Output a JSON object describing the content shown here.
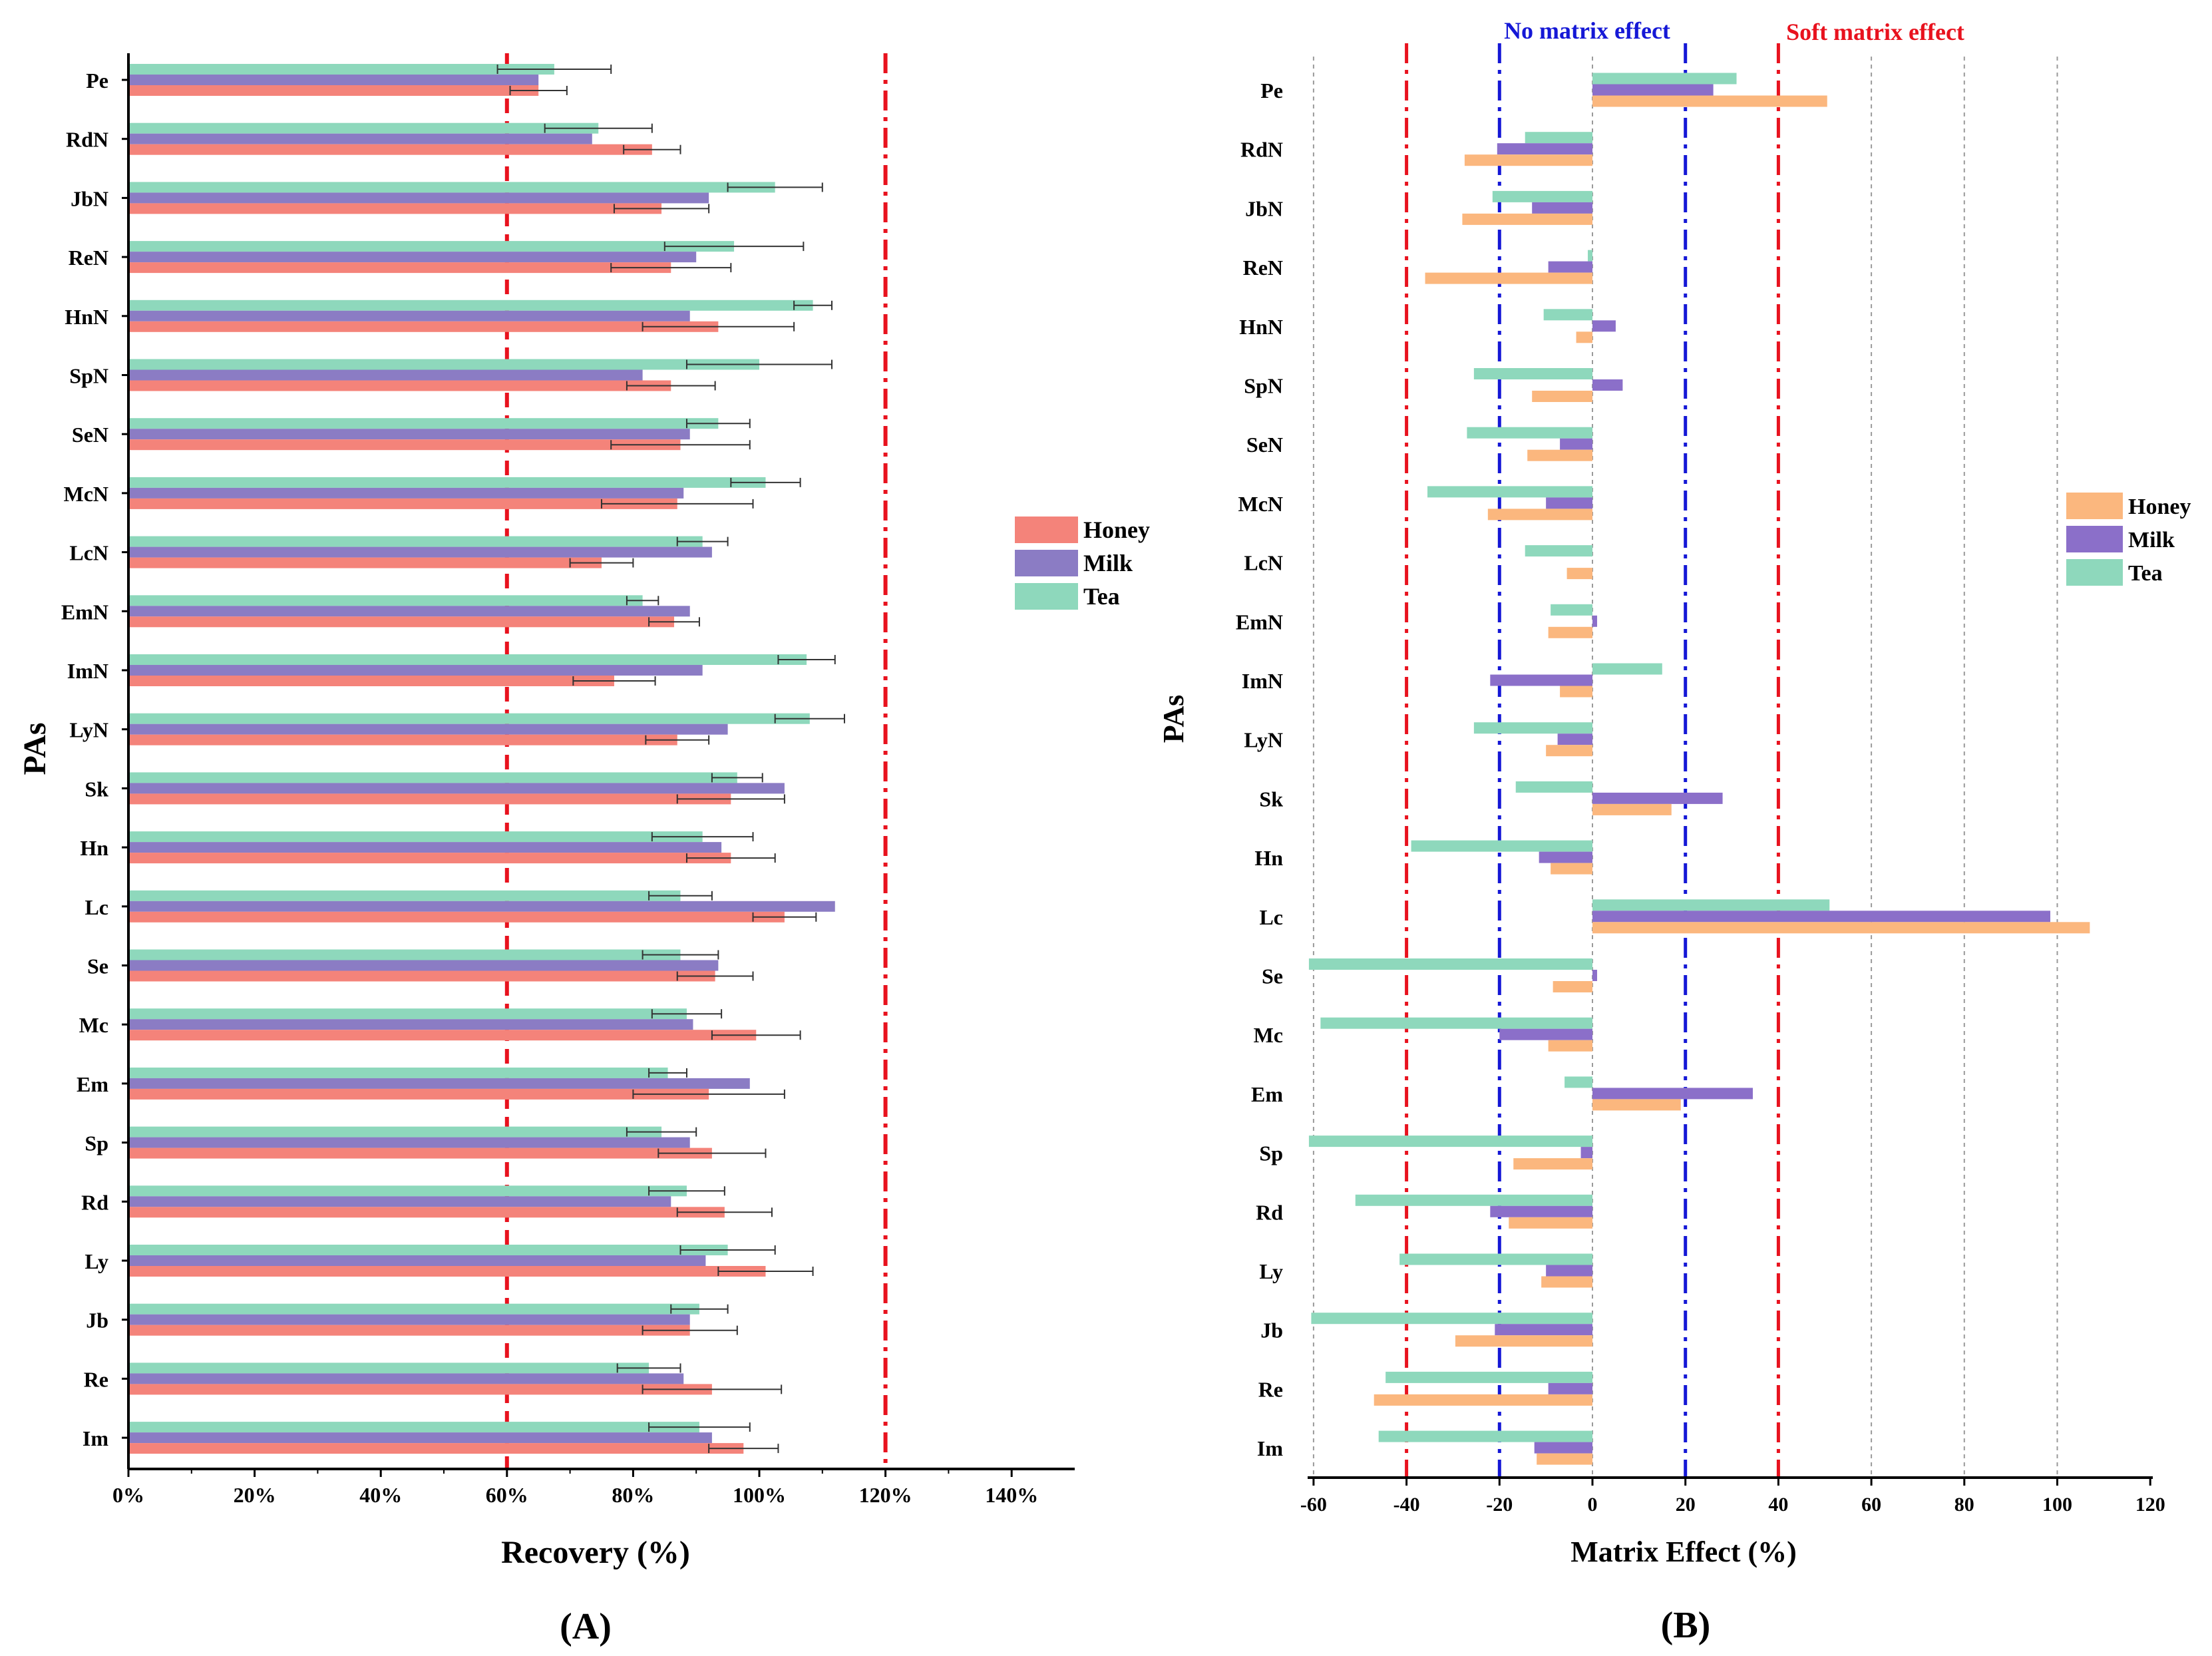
{
  "colors": {
    "honey_a": "#F4837A",
    "milk_a": "#8B7CC4",
    "tea_a": "#8ED8BC",
    "honey_b": "#FBB77E",
    "milk_b": "#8B6FC9",
    "tea_b": "#8ED8BC",
    "ref_red": "#E8121E",
    "ref_blue": "#1518D6",
    "axis": "#000000",
    "error_bar": "#333333",
    "grid": "#9a9a9a"
  },
  "panel_a": {
    "panel_label": "(A)",
    "xlabel": "Recovery (%)",
    "ylabel": "PAs",
    "legend": [
      "Honey",
      "Milk",
      "Tea"
    ],
    "x_ticks": [
      "0%",
      "20%",
      "40%",
      "60%",
      "80%",
      "100%",
      "120%",
      "140%"
    ]
  },
  "panel_b": {
    "panel_label": "(B)",
    "xlabel": "Matrix Effect (%)",
    "ylabel": "PAs",
    "legend": [
      "Honey",
      "Milk",
      "Tea"
    ],
    "x_ticks": [
      "-60",
      "-40",
      "-20",
      "0",
      "20",
      "40",
      "60",
      "80",
      "100",
      "120"
    ],
    "annotation_no_effect": "No matrix effect",
    "annotation_soft_effect": "Soft matrix effect"
  },
  "chart_data": [
    {
      "type": "bar",
      "orientation": "horizontal",
      "title": "",
      "xlabel": "Recovery (%)",
      "ylabel": "PAs",
      "xlim": [
        0,
        150
      ],
      "legend_position": "right",
      "grid": false,
      "reference_lines": [
        60,
        120
      ],
      "categories": [
        "Pe",
        "RdN",
        "JbN",
        "ReN",
        "HnN",
        "SpN",
        "SeN",
        "McN",
        "LcN",
        "EmN",
        "ImN",
        "LyN",
        "Sk",
        "Hn",
        "Lc",
        "Se",
        "Mc",
        "Em",
        "Sp",
        "Rd",
        "Ly",
        "Jb",
        "Re",
        "Im"
      ],
      "series": [
        {
          "name": "Tea",
          "values": [
            67.5,
            74.5,
            102.5,
            96,
            108.5,
            100,
            93.5,
            101,
            91,
            81.5,
            107.5,
            108,
            96.5,
            91,
            87.5,
            87.5,
            88.5,
            85.5,
            84.5,
            88.5,
            95,
            90.5,
            82.5,
            90.5
          ],
          "errors": [
            9,
            8.5,
            7.5,
            11,
            3,
            11.5,
            5,
            5.5,
            4,
            2.5,
            4.5,
            5.5,
            4,
            8,
            5,
            6,
            5.5,
            3,
            5.5,
            6,
            7.5,
            4.5,
            5,
            8
          ]
        },
        {
          "name": "Milk",
          "values": [
            65,
            73.5,
            92,
            90,
            89,
            81.5,
            89,
            88,
            92.5,
            89,
            91,
            95,
            104,
            94,
            112,
            93.5,
            89.5,
            98.5,
            89,
            86,
            91.5,
            89,
            88,
            92.5
          ]
        },
        {
          "name": "Honey",
          "values": [
            65,
            83,
            84.5,
            86,
            93.5,
            86,
            87.5,
            87,
            75,
            86.5,
            77,
            87,
            95.5,
            95.5,
            104,
            93,
            99.5,
            92,
            92.5,
            94.5,
            101,
            89,
            92.5,
            97.5
          ],
          "errors": [
            4.5,
            4.5,
            7.5,
            9.5,
            12,
            7,
            11,
            12,
            5,
            4,
            6.5,
            5,
            8.5,
            7,
            5,
            6,
            7,
            12,
            8.5,
            7.5,
            7.5,
            7.5,
            11,
            5.5
          ]
        }
      ]
    },
    {
      "type": "bar",
      "orientation": "horizontal",
      "title": "",
      "xlabel": "Matrix Effect (%)",
      "ylabel": "PAs",
      "xlim": [
        -70,
        120
      ],
      "legend_position": "right",
      "grid": true,
      "reference_lines": [
        -40,
        -20,
        20,
        40
      ],
      "categories": [
        "Pe",
        "RdN",
        "JbN",
        "ReN",
        "HnN",
        "SpN",
        "SeN",
        "McN",
        "LcN",
        "EmN",
        "ImN",
        "LyN",
        "Sk",
        "Hn",
        "Lc",
        "Se",
        "Mc",
        "Em",
        "Sp",
        "Rd",
        "Ly",
        "Jb",
        "Re",
        "Im"
      ],
      "series": [
        {
          "name": "Tea",
          "values": [
            31,
            -14.5,
            -21.5,
            -1,
            -10.5,
            -25.5,
            -27,
            -35.5,
            -14.5,
            -9,
            15,
            -25.5,
            -16.5,
            -39,
            51,
            -61,
            -58.5,
            -6,
            -61,
            -51,
            -41.5,
            -60.5,
            -44.5,
            -46
          ]
        },
        {
          "name": "Milk",
          "values": [
            26,
            -20.5,
            -13,
            -9.5,
            5,
            6.5,
            -7,
            -10,
            0,
            1,
            -22,
            -7.5,
            28,
            -11.5,
            98.5,
            1,
            -20,
            34.5,
            -2.5,
            -22,
            -10,
            -21,
            -9.5,
            -12.5
          ]
        },
        {
          "name": "Honey",
          "values": [
            50.5,
            -27.5,
            -28,
            -36,
            -3.5,
            -13,
            -14,
            -22.5,
            -5.5,
            -9.5,
            -7,
            -10,
            17,
            -9,
            107,
            -8.5,
            -9.5,
            19,
            -17,
            -18,
            -11,
            -29.5,
            -47,
            -12
          ]
        }
      ]
    }
  ]
}
